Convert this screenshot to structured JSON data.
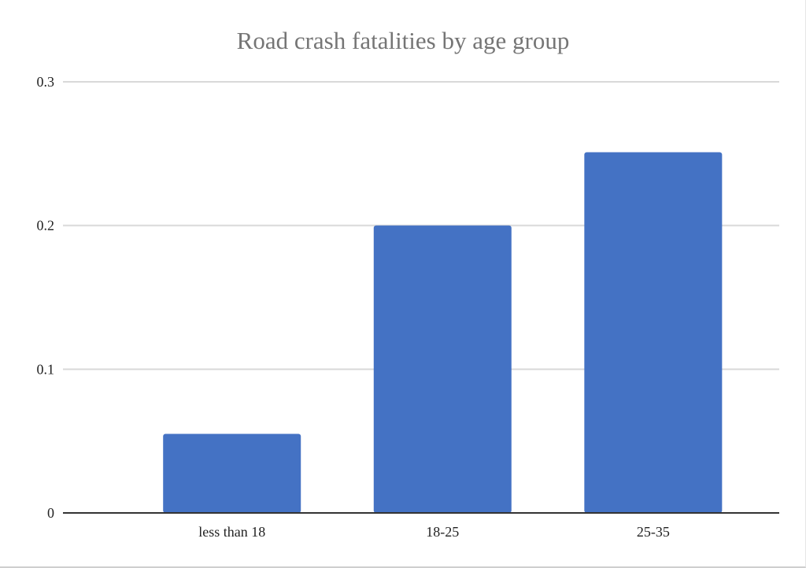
{
  "chart_data": {
    "type": "bar",
    "title": "Road crash fatalities by age group",
    "xlabel": "",
    "ylabel": "",
    "categories": [
      "less than 18",
      "18-25",
      "25-35"
    ],
    "series": [
      {
        "values": [
          0.055,
          0.2,
          0.251
        ]
      }
    ],
    "ylim": [
      0,
      0.3
    ],
    "yticks": [
      "0",
      "0.1",
      "0.2",
      "0.3"
    ],
    "grid": true,
    "legend": "none",
    "colors": {
      "bar": "#4472c4",
      "grid": "#d9d9d9",
      "axis": "#333333",
      "title": "#757575"
    }
  }
}
